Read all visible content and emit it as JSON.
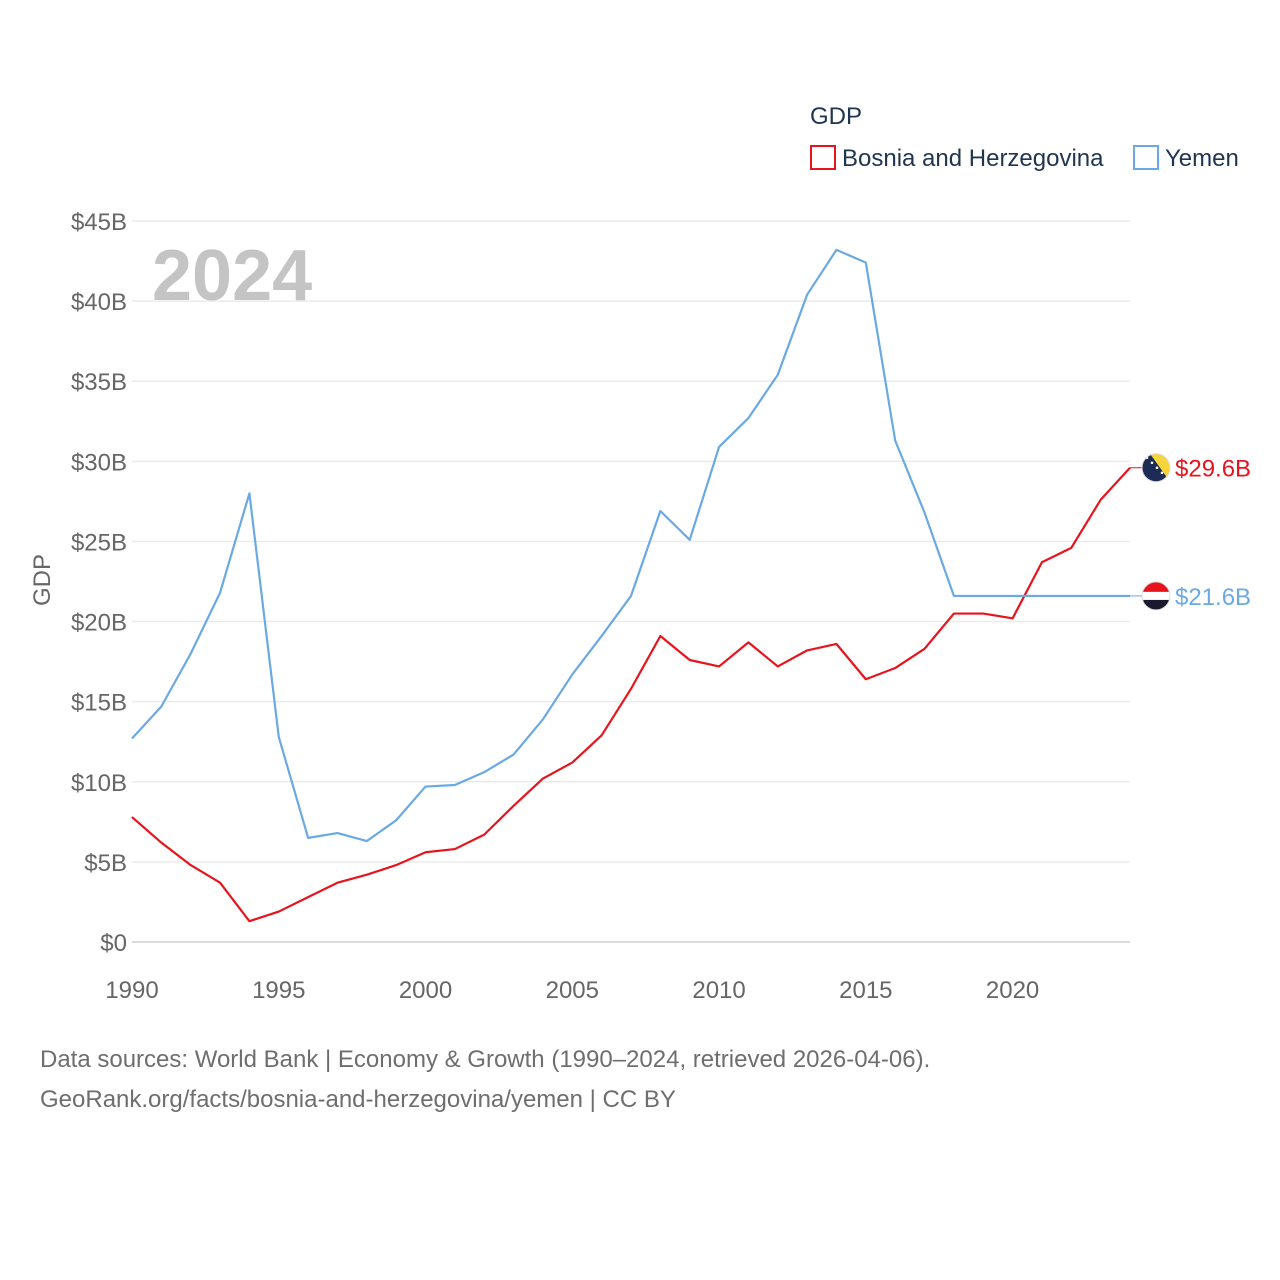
{
  "footer": {
    "line1": "Data sources: World Bank | Economy & Growth (1990–2024, retrieved 2026-04-06).",
    "line2": "GeoRank.org/facts/bosnia-and-herzegovina/yemen | CC BY"
  },
  "chart_data": {
    "type": "line",
    "title": "GDP",
    "ylabel": "GDP",
    "xlabel": "",
    "year_label": "2024",
    "x": [
      1990,
      1991,
      1992,
      1993,
      1994,
      1995,
      1996,
      1997,
      1998,
      1999,
      2000,
      2001,
      2002,
      2003,
      2004,
      2005,
      2006,
      2007,
      2008,
      2009,
      2010,
      2011,
      2012,
      2013,
      2014,
      2015,
      2016,
      2017,
      2018,
      2019,
      2020,
      2021,
      2022,
      2023,
      2024
    ],
    "xlim": [
      1990,
      2024
    ],
    "ylim": [
      0,
      45
    ],
    "y_unit": "billion USD",
    "x_ticks": [
      "1990",
      "1995",
      "2000",
      "2005",
      "2010",
      "2015",
      "2020"
    ],
    "x_tick_values": [
      1990,
      1995,
      2000,
      2005,
      2010,
      2015,
      2020
    ],
    "y_ticks": [
      "$0",
      "$5B",
      "$10B",
      "$15B",
      "$20B",
      "$25B",
      "$30B",
      "$35B",
      "$40B",
      "$45B"
    ],
    "y_tick_values": [
      0,
      5,
      10,
      15,
      20,
      25,
      30,
      35,
      40,
      45
    ],
    "grid": true,
    "legend_position": "top-right",
    "series": [
      {
        "name": "Bosnia and Herzegovina",
        "color": "#e8141d",
        "values": [
          7.8,
          6.2,
          4.8,
          3.7,
          1.3,
          1.9,
          2.8,
          3.7,
          4.2,
          4.8,
          5.6,
          5.8,
          6.7,
          8.5,
          10.2,
          11.2,
          12.9,
          15.8,
          19.1,
          17.6,
          17.2,
          18.7,
          17.2,
          18.2,
          18.6,
          16.4,
          17.1,
          18.3,
          20.5,
          20.5,
          20.2,
          23.7,
          24.6,
          27.6,
          29.6
        ],
        "end_label": "$29.6B",
        "flag_colors": [
          "#1d2c57",
          "#f7d438",
          "#ffffff"
        ]
      },
      {
        "name": "Yemen",
        "color": "#6aa9e3",
        "values": [
          12.7,
          14.7,
          18.0,
          21.8,
          28.0,
          12.8,
          6.5,
          6.8,
          6.3,
          7.6,
          9.7,
          9.8,
          10.6,
          11.7,
          13.9,
          16.7,
          19.1,
          21.6,
          26.9,
          25.1,
          30.9,
          32.7,
          35.4,
          40.4,
          43.2,
          42.4,
          31.3,
          26.8,
          21.6,
          21.6,
          21.6,
          21.6,
          21.6,
          21.6,
          21.6
        ],
        "end_label": "$21.6B",
        "flag_colors": [
          "#e8141d",
          "#ffffff",
          "#1a1a2e"
        ]
      }
    ]
  }
}
